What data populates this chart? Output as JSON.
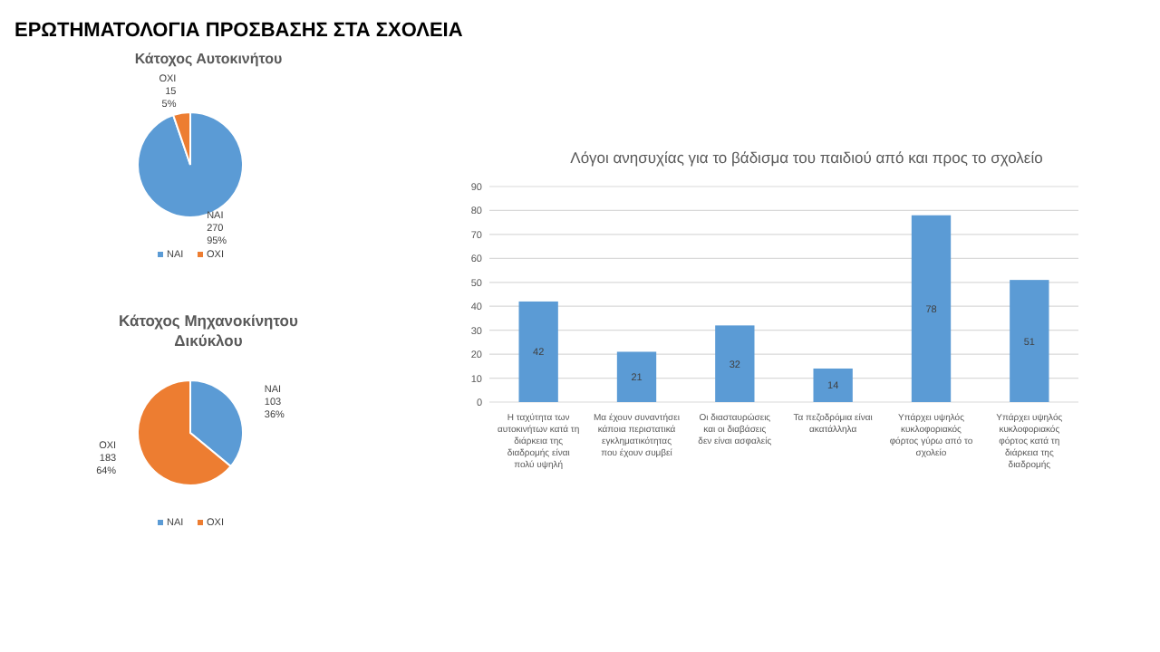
{
  "chart_data": [
    {
      "type": "pie",
      "title": "ΕΡΩΤΗΜΑΤΟΛΟΓΙΑ ΠΡΟΣΒΑΣΗΣ ΣΤΑ ΣΧΟΛΕΙΑ",
      "subtitle": "Κάτοχος Αυτοκινήτου",
      "categories": [
        "ΝΑΙ",
        "ΟΧΙ"
      ],
      "values": [
        270,
        15
      ],
      "value_labels": [
        "270 95%",
        "15 5%"
      ],
      "colors": [
        "#5b9bd5",
        "#ed7d31"
      ],
      "legend": "bottom"
    },
    {
      "type": "pie",
      "title": "Κάτοχος Μηχανοκίνητου Δικύκλου",
      "categories": [
        "ΝΑΙ",
        "ΟΧΙ"
      ],
      "values": [
        103,
        183
      ],
      "value_labels": [
        "103 36%",
        "183 64%"
      ],
      "colors": [
        "#5b9bd5",
        "#ed7d31"
      ],
      "legend": "bottom"
    },
    {
      "type": "bar",
      "title": "Λόγοι ανησυχίας για το βάδισμα του παιδιού από και προς το σχολείο",
      "categories": [
        "Η ταχύτητα των αυτοκινήτων κατά τη διάρκεια της διαδρομής είναι πολύ υψηλή",
        "Μα έχουν συναντήσει κάποια περιστατικά εγκληματικότητας που έχουν συμβεί",
        "Οι διασταυρώσεις και οι διαβάσεις δεν είναι ασφαλείς",
        "Τα πεζοδρόμια είναι ακατάλληλα",
        "Υπάρχει υψηλός κυκλοφοριακός φόρτος γύρω από το σχολείο",
        "Υπάρχει υψηλός κυκλοφοριακός φόρτος κατά τη διάρκεια της διαδρομής"
      ],
      "values": [
        42,
        21,
        32,
        14,
        78,
        51
      ],
      "color": "#5b9bd5",
      "ylim": [
        0,
        90
      ],
      "yticks": [
        0,
        10,
        20,
        30,
        40,
        50,
        60,
        70,
        80,
        90
      ],
      "grid": "y",
      "data_labels": true
    }
  ]
}
